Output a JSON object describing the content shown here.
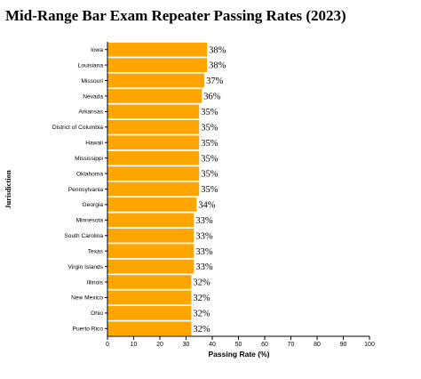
{
  "chart_data": {
    "type": "bar",
    "orientation": "horizontal",
    "title": "Mid-Range Bar Exam Repeater Passing Rates (2023)",
    "xlabel": "Passing Rate (%)",
    "ylabel": "Jurisdiction",
    "xlim": [
      0,
      100
    ],
    "xticks": [
      "0",
      "10",
      "20",
      "30",
      "40",
      "50",
      "60",
      "70",
      "80",
      "90",
      "100"
    ],
    "value_suffix": "%",
    "bar_color": "#FFA500",
    "grid": false,
    "categories": [
      "Iowa",
      "Louisiana",
      "Missouri",
      "Nevada",
      "Arkansas",
      "District of Columbia",
      "Hawaii",
      "Mississippi",
      "Oklahoma",
      "Pennsylvania",
      "Georgia",
      "Minnesota",
      "South Carolina",
      "Texas",
      "Virgin Islands",
      "Illinois",
      "New Mexico",
      "Ohio",
      "Puerto Rico"
    ],
    "values": [
      38,
      38,
      37,
      36,
      35,
      35,
      35,
      35,
      35,
      35,
      34,
      33,
      33,
      33,
      33,
      32,
      32,
      32,
      32
    ]
  }
}
